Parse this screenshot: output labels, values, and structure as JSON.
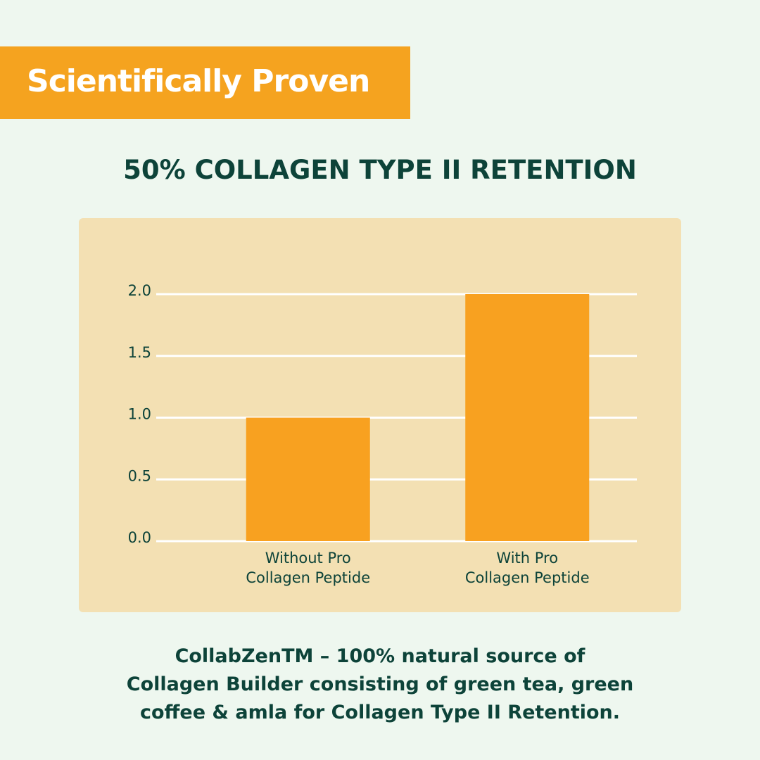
{
  "header": {
    "badge": "Scientifically Proven"
  },
  "chart_data": {
    "type": "bar",
    "title": "50% COLLAGEN TYPE II RETENTION",
    "categories": [
      "Without Pro\nCollagen Peptide",
      "With Pro\nCollagen Peptide"
    ],
    "values": [
      1.0,
      2.0
    ],
    "color": "#f8a120",
    "ylim": [
      0,
      2
    ],
    "yticks": [
      {
        "value": 0,
        "label": "0.0"
      },
      0.5,
      {
        "value": 1,
        "label": "1.0"
      },
      1.5,
      {
        "value": 2,
        "label": "2.0"
      }
    ],
    "grid": true
  },
  "footer": {
    "text": "CollabZenTM – 100% natural source of\nCollagen Builder consisting of green tea, green\ncoffee & amla for Collagen Type II Retention."
  }
}
